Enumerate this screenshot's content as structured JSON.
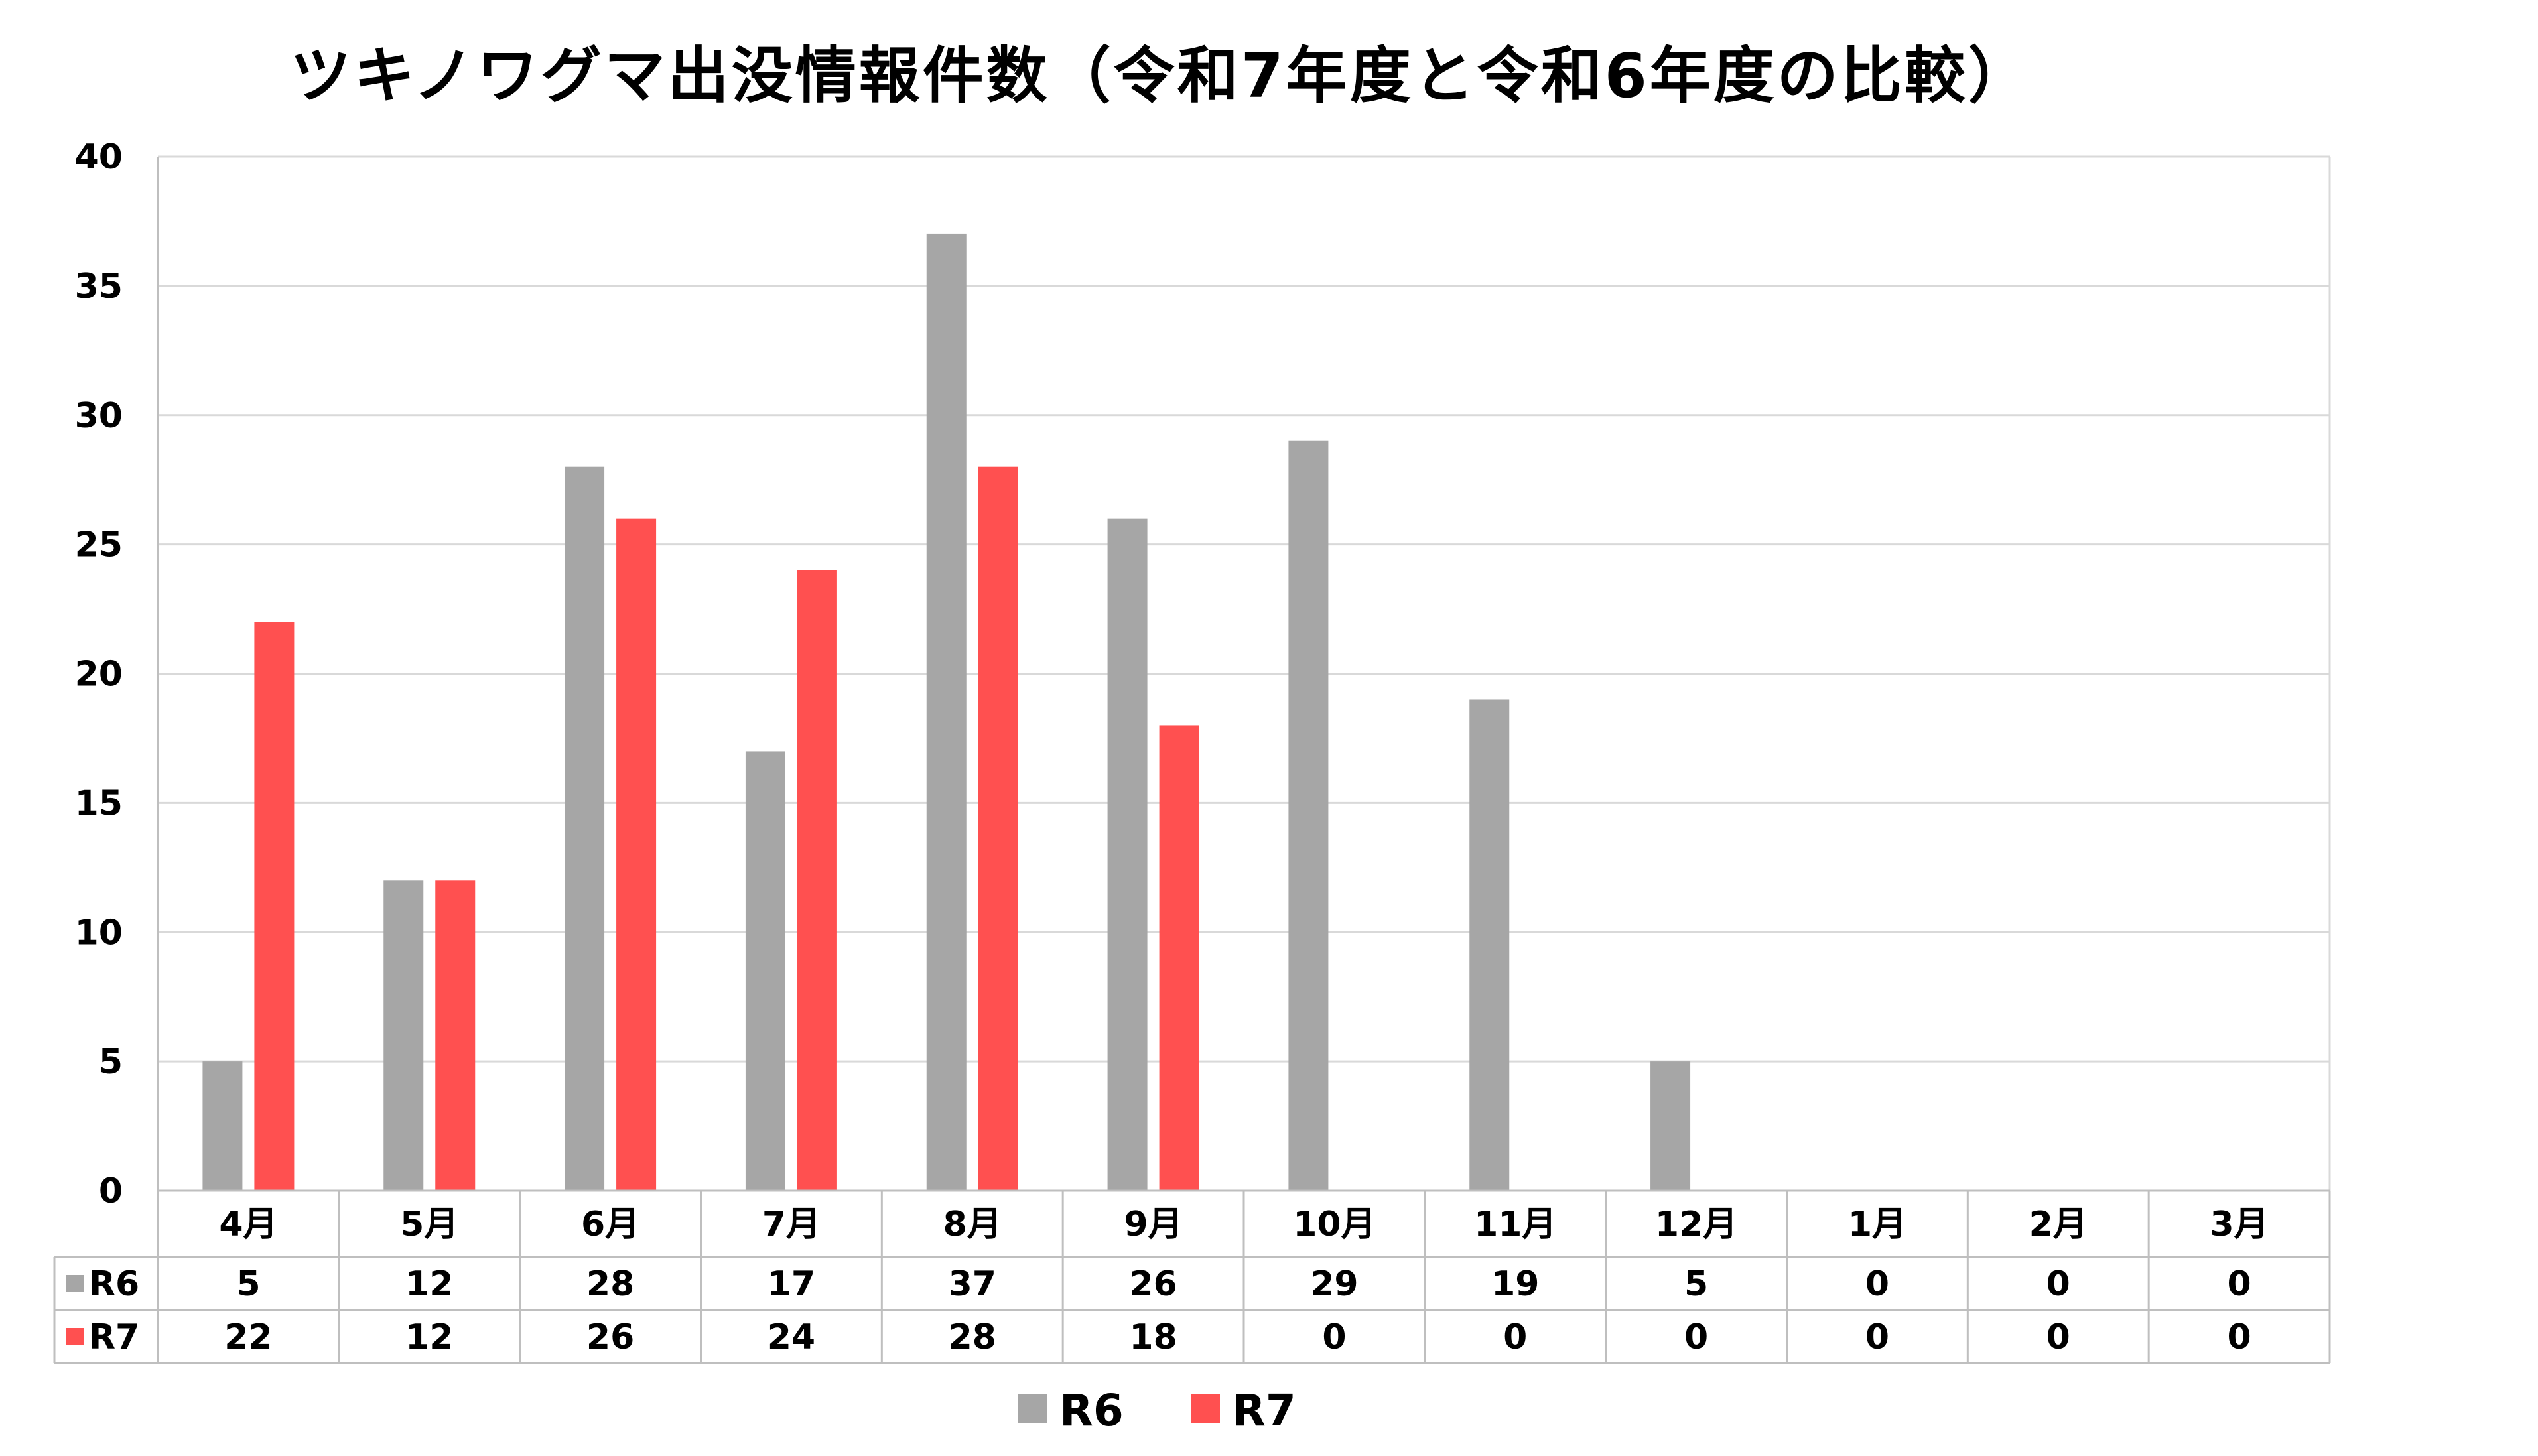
{
  "chart_data": {
    "type": "bar",
    "title": "ツキノワグマ出没情報件数（令和7年度と令和6年度の比較）",
    "categories": [
      "4月",
      "5月",
      "6月",
      "7月",
      "8月",
      "9月",
      "10月",
      "11月",
      "12月",
      "1月",
      "2月",
      "3月"
    ],
    "series": [
      {
        "name": "R6",
        "color": "#a6a6a6",
        "values": [
          5,
          12,
          28,
          17,
          37,
          26,
          29,
          19,
          5,
          0,
          0,
          0
        ]
      },
      {
        "name": "R7",
        "color": "#ff5050",
        "values": [
          22,
          12,
          26,
          24,
          28,
          18,
          0,
          0,
          0,
          0,
          0,
          0
        ]
      }
    ],
    "ylim": [
      0,
      40
    ],
    "yticks": [
      0,
      5,
      10,
      15,
      20,
      25,
      30,
      35,
      40
    ],
    "grid": true,
    "data_table": true,
    "legend_position": "bottom"
  }
}
